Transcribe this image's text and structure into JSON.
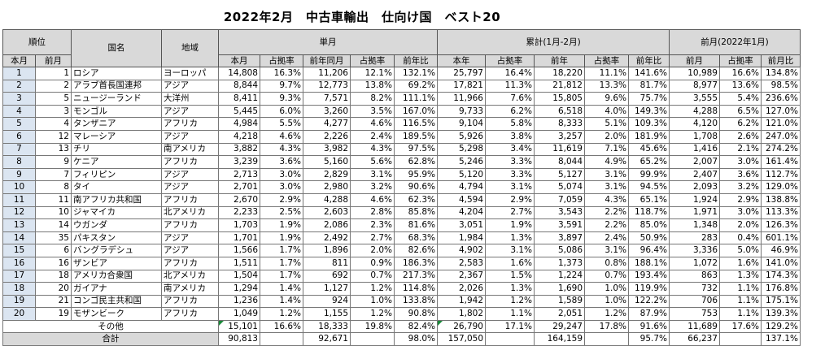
{
  "title": "2022年2月　中古車輸出　仕向け国　ベスト20",
  "headers": {
    "rank": "順位",
    "country": "国名",
    "region": "地域",
    "monthly": "単月",
    "cumulative": "累計(1月-2月)",
    "prev_month": "前月(2022年1月)",
    "this_month_rank": "本月",
    "prev_month_rank": "前月",
    "this_month": "本月",
    "share": "占拠率",
    "prev_year_same_month": "前年同月",
    "yoy": "前年比",
    "this_year": "本年",
    "prev_year": "前年",
    "prev_month_col": "前月",
    "mom": "前月比"
  },
  "rows": [
    {
      "r": "1",
      "pr": "1",
      "country": "ロシア",
      "region": "ヨーロッパ",
      "m": "14,808",
      "ms": "16.3%",
      "py": "11,206",
      "pys": "12.1%",
      "yoy": "132.1%",
      "cy": "25,797",
      "cys": "16.4%",
      "cpy": "18,220",
      "cpys": "11.1%",
      "cyoy": "141.6%",
      "pm": "10,989",
      "pms": "16.6%",
      "mom": "134.8%"
    },
    {
      "r": "2",
      "pr": "2",
      "country": "アラブ首長国連邦",
      "region": "アジア",
      "m": "8,844",
      "ms": "9.7%",
      "py": "12,773",
      "pys": "13.8%",
      "yoy": "69.2%",
      "cy": "17,821",
      "cys": "11.3%",
      "cpy": "21,812",
      "cpys": "13.3%",
      "cyoy": "81.7%",
      "pm": "8,977",
      "pms": "13.6%",
      "mom": "98.5%"
    },
    {
      "r": "3",
      "pr": "5",
      "country": "ニュージーランド",
      "region": "大洋州",
      "m": "8,411",
      "ms": "9.3%",
      "py": "7,571",
      "pys": "8.2%",
      "yoy": "111.1%",
      "cy": "11,966",
      "cys": "7.6%",
      "cpy": "15,805",
      "cpys": "9.6%",
      "cyoy": "75.7%",
      "pm": "3,555",
      "pms": "5.4%",
      "mom": "236.6%"
    },
    {
      "r": "4",
      "pr": "3",
      "country": "モンゴル",
      "region": "アジア",
      "m": "5,445",
      "ms": "6.0%",
      "py": "3,260",
      "pys": "3.5%",
      "yoy": "167.0%",
      "cy": "9,733",
      "cys": "6.2%",
      "cpy": "6,518",
      "cpys": "4.0%",
      "cyoy": "149.3%",
      "pm": "4,288",
      "pms": "6.5%",
      "mom": "127.0%"
    },
    {
      "r": "5",
      "pr": "4",
      "country": "タンザニア",
      "region": "アフリカ",
      "m": "4,984",
      "ms": "5.5%",
      "py": "4,277",
      "pys": "4.6%",
      "yoy": "116.5%",
      "cy": "9,104",
      "cys": "5.8%",
      "cpy": "8,333",
      "cpys": "5.1%",
      "cyoy": "109.3%",
      "pm": "4,120",
      "pms": "6.2%",
      "mom": "121.0%"
    },
    {
      "r": "6",
      "pr": "12",
      "country": "マレーシア",
      "region": "アジア",
      "m": "4,218",
      "ms": "4.6%",
      "py": "2,226",
      "pys": "2.4%",
      "yoy": "189.5%",
      "cy": "5,926",
      "cys": "3.8%",
      "cpy": "3,257",
      "cpys": "2.0%",
      "cyoy": "181.9%",
      "pm": "1,708",
      "pms": "2.6%",
      "mom": "247.0%"
    },
    {
      "r": "7",
      "pr": "13",
      "country": "チリ",
      "region": "南アメリカ",
      "m": "3,882",
      "ms": "4.3%",
      "py": "3,982",
      "pys": "4.3%",
      "yoy": "97.5%",
      "cy": "5,298",
      "cys": "3.4%",
      "cpy": "11,619",
      "cpys": "7.1%",
      "cyoy": "45.6%",
      "pm": "1,416",
      "pms": "2.1%",
      "mom": "274.2%"
    },
    {
      "r": "8",
      "pr": "9",
      "country": "ケニア",
      "region": "アフリカ",
      "m": "3,239",
      "ms": "3.6%",
      "py": "5,160",
      "pys": "5.6%",
      "yoy": "62.8%",
      "cy": "5,246",
      "cys": "3.3%",
      "cpy": "8,044",
      "cpys": "4.9%",
      "cyoy": "65.2%",
      "pm": "2,007",
      "pms": "3.0%",
      "mom": "161.4%"
    },
    {
      "r": "9",
      "pr": "7",
      "country": "フィリピン",
      "region": "アジア",
      "m": "2,713",
      "ms": "3.0%",
      "py": "2,829",
      "pys": "3.1%",
      "yoy": "95.9%",
      "cy": "5,120",
      "cys": "3.3%",
      "cpy": "5,127",
      "cpys": "3.1%",
      "cyoy": "99.9%",
      "pm": "2,407",
      "pms": "3.6%",
      "mom": "112.7%"
    },
    {
      "r": "10",
      "pr": "8",
      "country": "タイ",
      "region": "アジア",
      "m": "2,701",
      "ms": "3.0%",
      "py": "2,980",
      "pys": "3.2%",
      "yoy": "90.6%",
      "cy": "4,794",
      "cys": "3.1%",
      "cpy": "5,074",
      "cpys": "3.1%",
      "cyoy": "94.5%",
      "pm": "2,093",
      "pms": "3.2%",
      "mom": "129.0%"
    },
    {
      "r": "11",
      "pr": "11",
      "country": "南アフリカ共和国",
      "region": "アフリカ",
      "m": "2,670",
      "ms": "2.9%",
      "py": "4,288",
      "pys": "4.6%",
      "yoy": "62.3%",
      "cy": "4,594",
      "cys": "2.9%",
      "cpy": "7,059",
      "cpys": "4.3%",
      "cyoy": "65.1%",
      "pm": "1,924",
      "pms": "2.9%",
      "mom": "138.8%"
    },
    {
      "r": "12",
      "pr": "10",
      "country": "ジャマイカ",
      "region": "北アメリカ",
      "m": "2,233",
      "ms": "2.5%",
      "py": "2,603",
      "pys": "2.8%",
      "yoy": "85.8%",
      "cy": "4,204",
      "cys": "2.7%",
      "cpy": "3,543",
      "cpys": "2.2%",
      "cyoy": "118.7%",
      "pm": "1,971",
      "pms": "3.0%",
      "mom": "113.3%"
    },
    {
      "r": "13",
      "pr": "14",
      "country": "ウガンダ",
      "region": "アフリカ",
      "m": "1,703",
      "ms": "1.9%",
      "py": "2,086",
      "pys": "2.3%",
      "yoy": "81.6%",
      "cy": "3,051",
      "cys": "1.9%",
      "cpy": "3,591",
      "cpys": "2.2%",
      "cyoy": "85.0%",
      "pm": "1,348",
      "pms": "2.0%",
      "mom": "126.3%"
    },
    {
      "r": "14",
      "pr": "35",
      "country": "パキスタン",
      "region": "アジア",
      "m": "1,701",
      "ms": "1.9%",
      "py": "2,492",
      "pys": "2.7%",
      "yoy": "68.3%",
      "cy": "1,984",
      "cys": "1.3%",
      "cpy": "3,897",
      "cpys": "2.4%",
      "cyoy": "50.9%",
      "pm": "283",
      "pms": "0.4%",
      "mom": "601.1%"
    },
    {
      "r": "15",
      "pr": "6",
      "country": "バングラデシュ",
      "region": "アジア",
      "m": "1,566",
      "ms": "1.7%",
      "py": "1,896",
      "pys": "2.0%",
      "yoy": "82.6%",
      "cy": "4,902",
      "cys": "3.1%",
      "cpy": "5,086",
      "cpys": "3.1%",
      "cyoy": "96.4%",
      "pm": "3,336",
      "pms": "5.0%",
      "mom": "46.9%"
    },
    {
      "r": "16",
      "pr": "16",
      "country": "ザンビア",
      "region": "アフリカ",
      "m": "1,511",
      "ms": "1.7%",
      "py": "811",
      "pys": "0.9%",
      "yoy": "186.3%",
      "cy": "2,583",
      "cys": "1.6%",
      "cpy": "1,373",
      "cpys": "0.8%",
      "cyoy": "188.1%",
      "pm": "1,072",
      "pms": "1.6%",
      "mom": "141.0%"
    },
    {
      "r": "17",
      "pr": "18",
      "country": "アメリカ合衆国",
      "region": "北アメリカ",
      "m": "1,504",
      "ms": "1.7%",
      "py": "692",
      "pys": "0.7%",
      "yoy": "217.3%",
      "cy": "2,367",
      "cys": "1.5%",
      "cpy": "1,224",
      "cpys": "0.7%",
      "cyoy": "193.4%",
      "pm": "863",
      "pms": "1.3%",
      "mom": "174.3%"
    },
    {
      "r": "18",
      "pr": "20",
      "country": "ガイアナ",
      "region": "南アメリカ",
      "m": "1,294",
      "ms": "1.4%",
      "py": "1,127",
      "pys": "1.2%",
      "yoy": "114.8%",
      "cy": "2,026",
      "cys": "1.3%",
      "cpy": "1,690",
      "cpys": "1.0%",
      "cyoy": "119.9%",
      "pm": "732",
      "pms": "1.1%",
      "mom": "176.8%"
    },
    {
      "r": "19",
      "pr": "21",
      "country": "コンゴ民主共和国",
      "region": "アフリカ",
      "m": "1,236",
      "ms": "1.4%",
      "py": "924",
      "pys": "1.0%",
      "yoy": "133.8%",
      "cy": "1,942",
      "cys": "1.2%",
      "cpy": "1,589",
      "cpys": "1.0%",
      "cyoy": "122.2%",
      "pm": "706",
      "pms": "1.1%",
      "mom": "175.1%"
    },
    {
      "r": "20",
      "pr": "19",
      "country": "モザンビーク",
      "region": "アフリカ",
      "m": "1,049",
      "ms": "1.2%",
      "py": "1,155",
      "pys": "1.2%",
      "yoy": "90.8%",
      "cy": "1,802",
      "cys": "1.1%",
      "cpy": "2,051",
      "cpys": "1.2%",
      "cyoy": "87.9%",
      "pm": "753",
      "pms": "1.1%",
      "mom": "139.3%"
    }
  ],
  "others": {
    "label": "その他",
    "m": "15,101",
    "ms": "16.6%",
    "py": "18,333",
    "pys": "19.8%",
    "yoy": "82.4%",
    "cy": "26,790",
    "cys": "17.1%",
    "cpy": "29,247",
    "cpys": "17.8%",
    "cyoy": "91.6%",
    "pm": "11,689",
    "pms": "17.6%",
    "mom": "129.2%"
  },
  "total": {
    "label": "合計",
    "m": "90,813",
    "py": "92,671",
    "yoy": "98.0%",
    "cy": "157,050",
    "cpy": "164,159",
    "cyoy": "95.7%",
    "pm": "66,237",
    "mom": "137.1%"
  }
}
